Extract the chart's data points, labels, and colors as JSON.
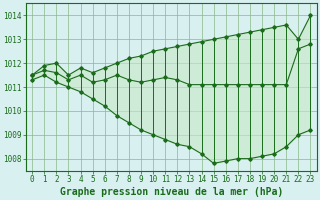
{
  "title": "Graphe pression niveau de la mer (hPa)",
  "x_labels": [
    "0",
    "1",
    "2",
    "3",
    "4",
    "5",
    "6",
    "7",
    "8",
    "9",
    "10",
    "11",
    "12",
    "13",
    "14",
    "15",
    "16",
    "17",
    "18",
    "19",
    "20",
    "21",
    "22",
    "23"
  ],
  "hours": [
    0,
    1,
    2,
    3,
    4,
    5,
    6,
    7,
    8,
    9,
    10,
    11,
    12,
    13,
    14,
    15,
    16,
    17,
    18,
    19,
    20,
    21,
    22,
    23
  ],
  "top_line": [
    1011.5,
    1011.9,
    1012.0,
    1011.5,
    1011.8,
    1011.6,
    1011.8,
    1012.0,
    1012.2,
    1012.3,
    1012.5,
    1012.6,
    1012.7,
    1012.8,
    1012.9,
    1013.0,
    1013.1,
    1013.2,
    1013.3,
    1013.4,
    1013.5,
    1013.6,
    1013.0,
    1014.0
  ],
  "mid_line": [
    1011.5,
    1011.7,
    1011.6,
    1011.3,
    1011.5,
    1011.2,
    1011.3,
    1011.5,
    1011.3,
    1011.2,
    1011.3,
    1011.4,
    1011.3,
    1011.1,
    1011.1,
    1011.1,
    1011.1,
    1011.1,
    1011.1,
    1011.1,
    1011.1,
    1011.1,
    1012.6,
    1012.8
  ],
  "bot_line": [
    1011.3,
    1011.5,
    1011.2,
    1011.0,
    1010.8,
    1010.5,
    1010.2,
    1009.8,
    1009.5,
    1009.2,
    1009.0,
    1008.8,
    1008.6,
    1008.5,
    1008.2,
    1007.8,
    1007.9,
    1008.0,
    1008.0,
    1008.1,
    1008.2,
    1008.5,
    1009.0,
    1009.2
  ],
  "ylim": [
    1007.5,
    1014.5
  ],
  "yticks": [
    1008,
    1009,
    1010,
    1011,
    1012,
    1013,
    1014
  ],
  "line_color": "#1a6b1a",
  "bg_color": "#d8f0f0",
  "grid_color": "#8ab88a",
  "title_color": "#1a6b1a",
  "title_fontsize": 7.0,
  "tick_fontsize": 5.5
}
